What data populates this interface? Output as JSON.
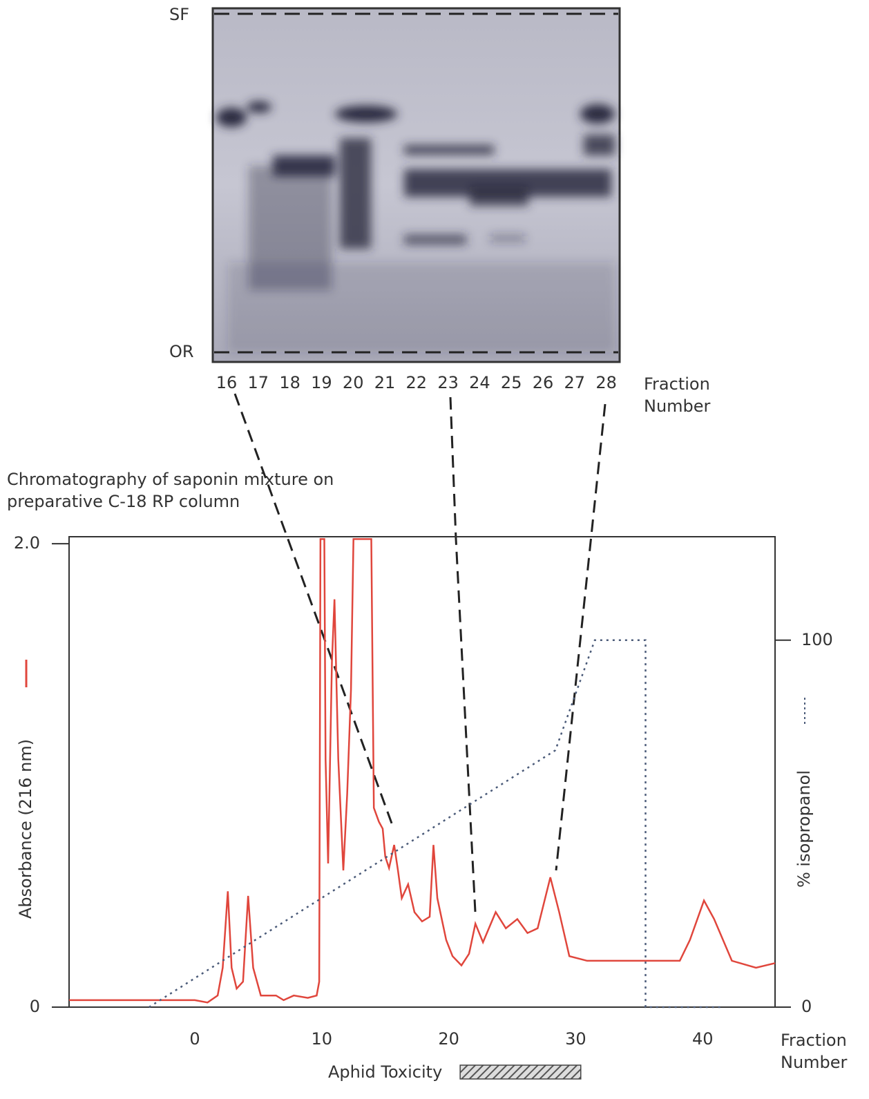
{
  "gel": {
    "solvent_front_label": "SF",
    "origin_label": "OR",
    "lanes": [
      "16",
      "17",
      "18",
      "19",
      "20",
      "21",
      "22",
      "23",
      "24",
      "25",
      "26",
      "27",
      "28"
    ],
    "lane_axis_label": "Fraction Number"
  },
  "chart_data": {
    "type": "line",
    "title": "Chromatography of saponin mixture on preparative C-18 RP column",
    "ylabel": "Absorbance (216 nm)",
    "y2label": "% isopropanol",
    "xlabel": "Fraction Number",
    "xlim": [
      -9.9,
      45.7
    ],
    "xticks": [
      0,
      10,
      20,
      30,
      40
    ],
    "ylim": [
      0,
      2.03
    ],
    "yticks": [
      0,
      {
        "value": 2,
        "label": "2.0"
      }
    ],
    "y2lim": [
      0,
      128.2
    ],
    "y2ticks": [
      0,
      100
    ],
    "series": [
      {
        "name": "Absorbance (216 nm)",
        "color": "#e0463c",
        "x": [
          -9.9,
          0,
          1.0,
          1.8,
          2.2,
          2.6,
          2.9,
          3.3,
          3.8,
          4.2,
          4.6,
          5.2,
          6.4,
          7.0,
          7.8,
          8.9,
          9.6,
          9.8,
          9.9,
          10.2,
          10.3,
          10.5,
          10.8,
          11.0,
          11.3,
          11.7,
          12.0,
          12.3,
          12.5,
          13.9,
          14.1,
          14.5,
          14.8,
          15.0,
          15.3,
          15.7,
          16.0,
          16.3,
          16.8,
          17.3,
          17.9,
          18.5,
          18.8,
          19.1,
          19.8,
          20.3,
          21.0,
          21.6,
          22.1,
          22.7,
          23.7,
          24.5,
          25.4,
          26.2,
          27.0,
          28.0,
          28.7,
          29.5,
          30.9,
          38.2,
          39.0,
          40.1,
          40.9,
          42.3,
          44.2,
          45.7
        ],
        "values": [
          0.03,
          0.03,
          0.02,
          0.05,
          0.17,
          0.5,
          0.17,
          0.08,
          0.11,
          0.48,
          0.17,
          0.05,
          0.05,
          0.03,
          0.05,
          0.04,
          0.05,
          0.11,
          2.02,
          2.02,
          1.07,
          0.62,
          1.49,
          1.76,
          1.07,
          0.59,
          0.92,
          1.37,
          2.02,
          2.02,
          0.86,
          0.8,
          0.77,
          0.65,
          0.6,
          0.7,
          0.59,
          0.47,
          0.53,
          0.41,
          0.37,
          0.39,
          0.7,
          0.47,
          0.29,
          0.22,
          0.18,
          0.23,
          0.36,
          0.28,
          0.41,
          0.34,
          0.38,
          0.32,
          0.34,
          0.56,
          0.41,
          0.22,
          0.2,
          0.2,
          0.29,
          0.46,
          0.38,
          0.2,
          0.17,
          0.19
        ]
      },
      {
        "name": "% isopropanol",
        "color": "#4a5a78",
        "axis": "y2",
        "x": [
          -3.6,
          28.4,
          31.5,
          35.5,
          35.5,
          41.6
        ],
        "values": [
          0,
          70,
          100,
          100,
          0,
          0
        ]
      }
    ],
    "toxicity_label": "Aphid Toxicity",
    "toxicity_range": [
      20.9,
      30.4
    ]
  }
}
